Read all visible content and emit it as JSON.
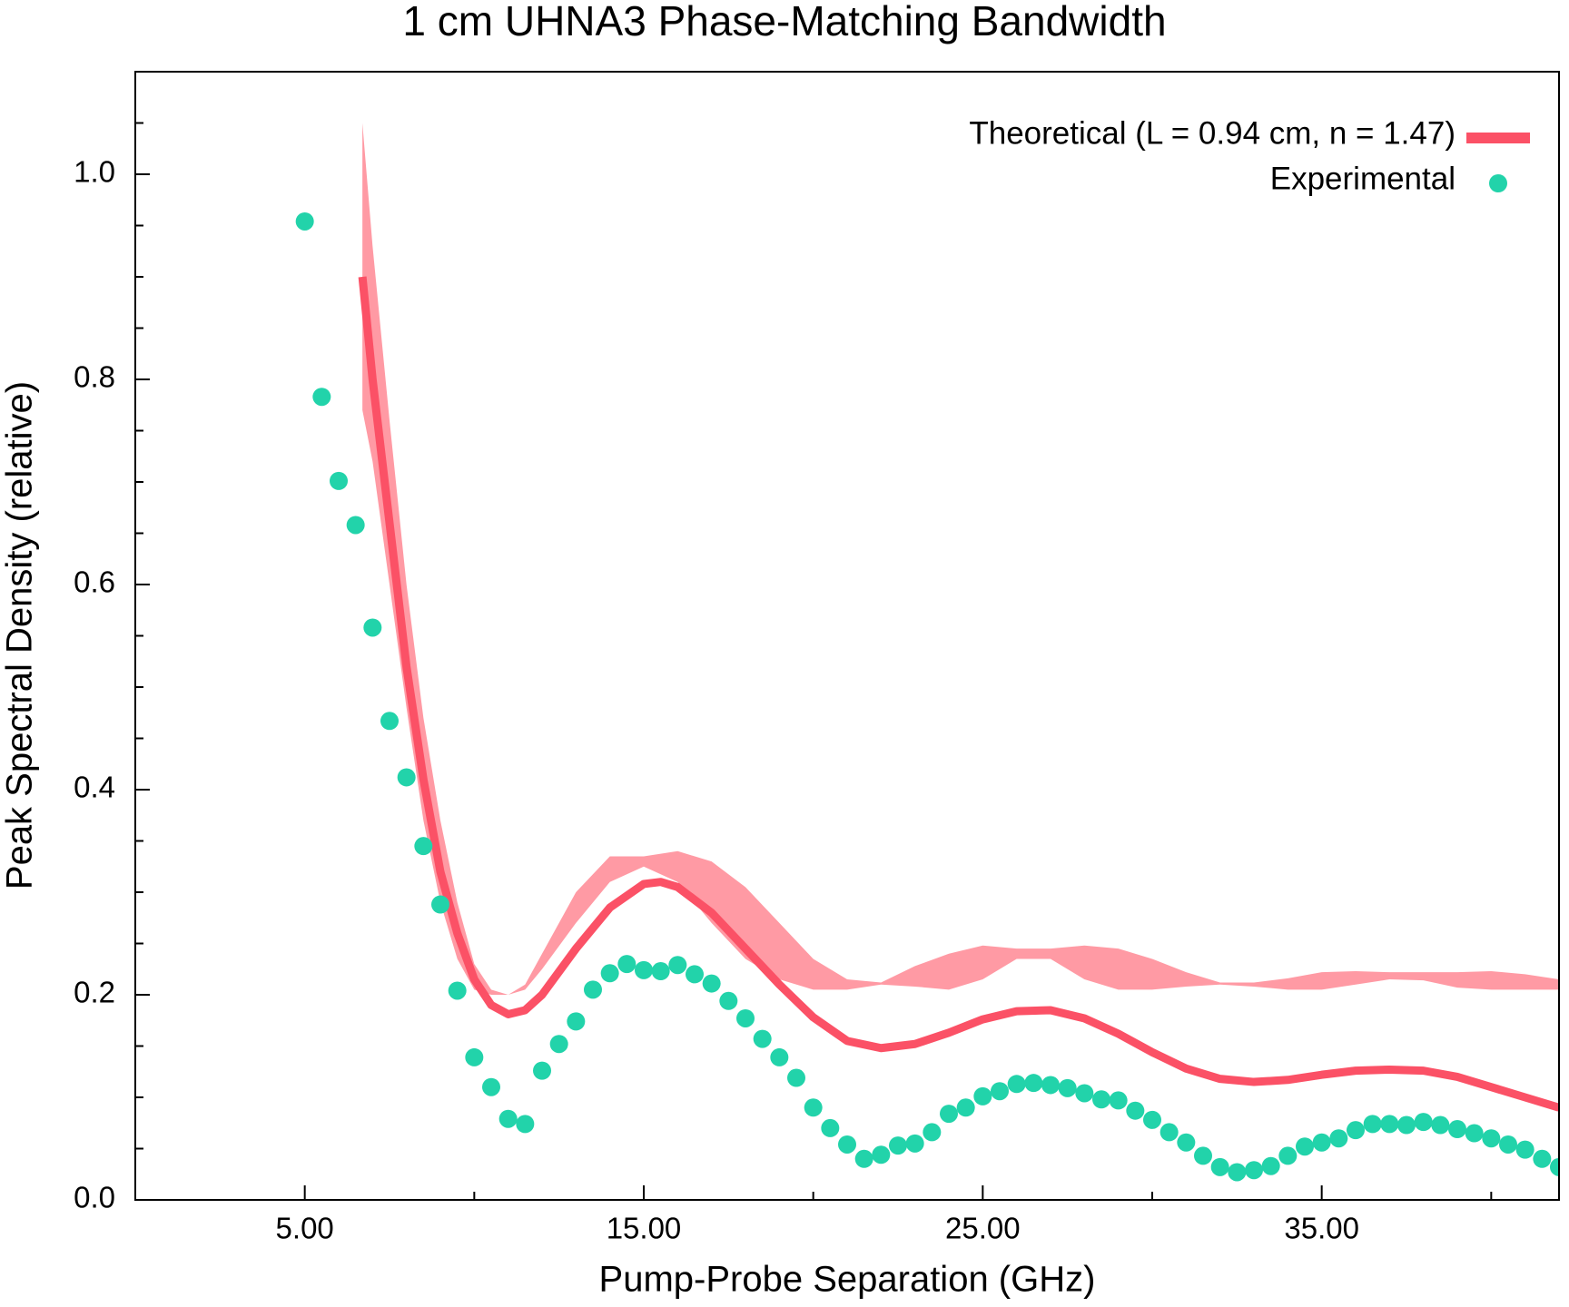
{
  "chart_data": {
    "type": "scatter",
    "title": "1 cm UHNA3 Phase-Matching Bandwidth",
    "x_label": "Pump-Probe Separation (GHz)",
    "y_label": "Peak Spectral Density (relative)",
    "xlim": [
      0,
      42
    ],
    "ylim": [
      0,
      1.1
    ],
    "xticks": [
      {
        "value": 5,
        "label": "5.00"
      },
      {
        "value": 15,
        "label": "15.00"
      },
      {
        "value": 25,
        "label": "25.00"
      },
      {
        "value": 35,
        "label": "35.00"
      }
    ],
    "xminor": [
      10,
      20,
      30,
      40
    ],
    "yticks": [
      {
        "value": 0,
        "label": "0.0"
      },
      0.2,
      0.4,
      0.6,
      0.8,
      {
        "value": 1,
        "label": "1.0"
      }
    ],
    "yminor": [
      0.05,
      0.1,
      0.15,
      0.25,
      0.3,
      0.35,
      0.45,
      0.5,
      0.55,
      0.65,
      0.7,
      0.75,
      0.85,
      0.9,
      0.95,
      1.05
    ],
    "legend": "top-right",
    "band": {
      "color": "#ff9aa4",
      "x": [
        6.7,
        7,
        7.5,
        8,
        8.5,
        9,
        9.5,
        10,
        10.5,
        11,
        11.5,
        12,
        13,
        14,
        15,
        16,
        17,
        18,
        19,
        20,
        21,
        22,
        23,
        24,
        25,
        26,
        27,
        28,
        29,
        30,
        31,
        32,
        33,
        34,
        35,
        36,
        37,
        38,
        39,
        40,
        41,
        42
      ],
      "upper": [
        1.05,
        0.93,
        0.76,
        0.6,
        0.47,
        0.37,
        0.29,
        0.23,
        0.205,
        0.2,
        0.21,
        0.24,
        0.3,
        0.335,
        0.335,
        0.34,
        0.33,
        0.305,
        0.27,
        0.235,
        0.215,
        0.212,
        0.228,
        0.24,
        0.248,
        0.245,
        0.245,
        0.248,
        0.245,
        0.235,
        0.222,
        0.212,
        0.212,
        0.216,
        0.222,
        0.223,
        0.222,
        0.222,
        0.222,
        0.223,
        0.22,
        0.215
      ],
      "lower": [
        0.77,
        0.72,
        0.6,
        0.48,
        0.37,
        0.29,
        0.235,
        0.205,
        0.2,
        0.2,
        0.205,
        0.225,
        0.27,
        0.31,
        0.325,
        0.31,
        0.27,
        0.235,
        0.215,
        0.205,
        0.205,
        0.21,
        0.208,
        0.205,
        0.215,
        0.235,
        0.235,
        0.215,
        0.205,
        0.205,
        0.208,
        0.21,
        0.208,
        0.205,
        0.205,
        0.21,
        0.215,
        0.214,
        0.207,
        0.205,
        0.205,
        0.205
      ]
    },
    "series": [
      {
        "name": "Theoretical (L = 0.94 cm, n = 1.47)",
        "kind": "line",
        "color": "#fb5166",
        "x": [
          6.7,
          7,
          7.5,
          8,
          8.5,
          9,
          9.5,
          10,
          10.5,
          11,
          11.5,
          12,
          13,
          14,
          15,
          15.5,
          16,
          17,
          18,
          19,
          20,
          21,
          22,
          23,
          24,
          25,
          26,
          27,
          28,
          29,
          30,
          31,
          32,
          33,
          34,
          35,
          36,
          37,
          38,
          39,
          40,
          41,
          42
        ],
        "values": [
          0.9,
          0.8,
          0.66,
          0.52,
          0.41,
          0.32,
          0.26,
          0.215,
          0.19,
          0.181,
          0.185,
          0.2,
          0.245,
          0.285,
          0.308,
          0.31,
          0.305,
          0.28,
          0.245,
          0.21,
          0.178,
          0.155,
          0.148,
          0.152,
          0.163,
          0.176,
          0.184,
          0.185,
          0.177,
          0.162,
          0.144,
          0.128,
          0.118,
          0.115,
          0.117,
          0.122,
          0.126,
          0.127,
          0.126,
          0.12,
          0.11,
          0.1,
          0.09
        ]
      },
      {
        "name": "Experimental",
        "kind": "points",
        "color": "#22d3aa",
        "x": [
          5,
          5.5,
          6,
          6.5,
          7,
          7.5,
          8,
          8.5,
          9,
          9.5,
          10,
          10.5,
          11,
          11.5,
          12,
          12.5,
          13,
          13.5,
          14,
          14.5,
          15,
          15.5,
          16,
          16.5,
          17,
          17.5,
          18,
          18.5,
          19,
          19.5,
          20,
          20.5,
          21,
          21.5,
          22,
          22.5,
          23,
          23.5,
          24,
          24.5,
          25,
          25.5,
          26,
          26.5,
          27,
          27.5,
          28,
          28.5,
          29,
          29.5,
          30,
          30.5,
          31,
          31.5,
          32,
          32.5,
          33,
          33.5,
          34,
          34.5,
          35,
          35.5,
          36,
          36.5,
          37,
          37.5,
          38,
          38.5,
          39,
          39.5,
          40,
          40.5,
          41,
          41.5,
          42
        ],
        "values": [
          0.954,
          0.783,
          0.701,
          0.658,
          0.558,
          0.467,
          0.412,
          0.345,
          0.288,
          0.204,
          0.139,
          0.11,
          0.079,
          0.074,
          0.126,
          0.152,
          0.174,
          0.205,
          0.221,
          0.23,
          0.224,
          0.223,
          0.229,
          0.22,
          0.211,
          0.194,
          0.177,
          0.157,
          0.139,
          0.119,
          0.09,
          0.07,
          0.054,
          0.04,
          0.044,
          0.053,
          0.055,
          0.066,
          0.084,
          0.09,
          0.101,
          0.106,
          0.113,
          0.114,
          0.112,
          0.109,
          0.104,
          0.098,
          0.097,
          0.087,
          0.078,
          0.066,
          0.056,
          0.043,
          0.032,
          0.027,
          0.029,
          0.033,
          0.043,
          0.052,
          0.056,
          0.06,
          0.068,
          0.074,
          0.074,
          0.073,
          0.076,
          0.073,
          0.069,
          0.065,
          0.06,
          0.054,
          0.049,
          0.04,
          0.032
        ]
      }
    ]
  }
}
